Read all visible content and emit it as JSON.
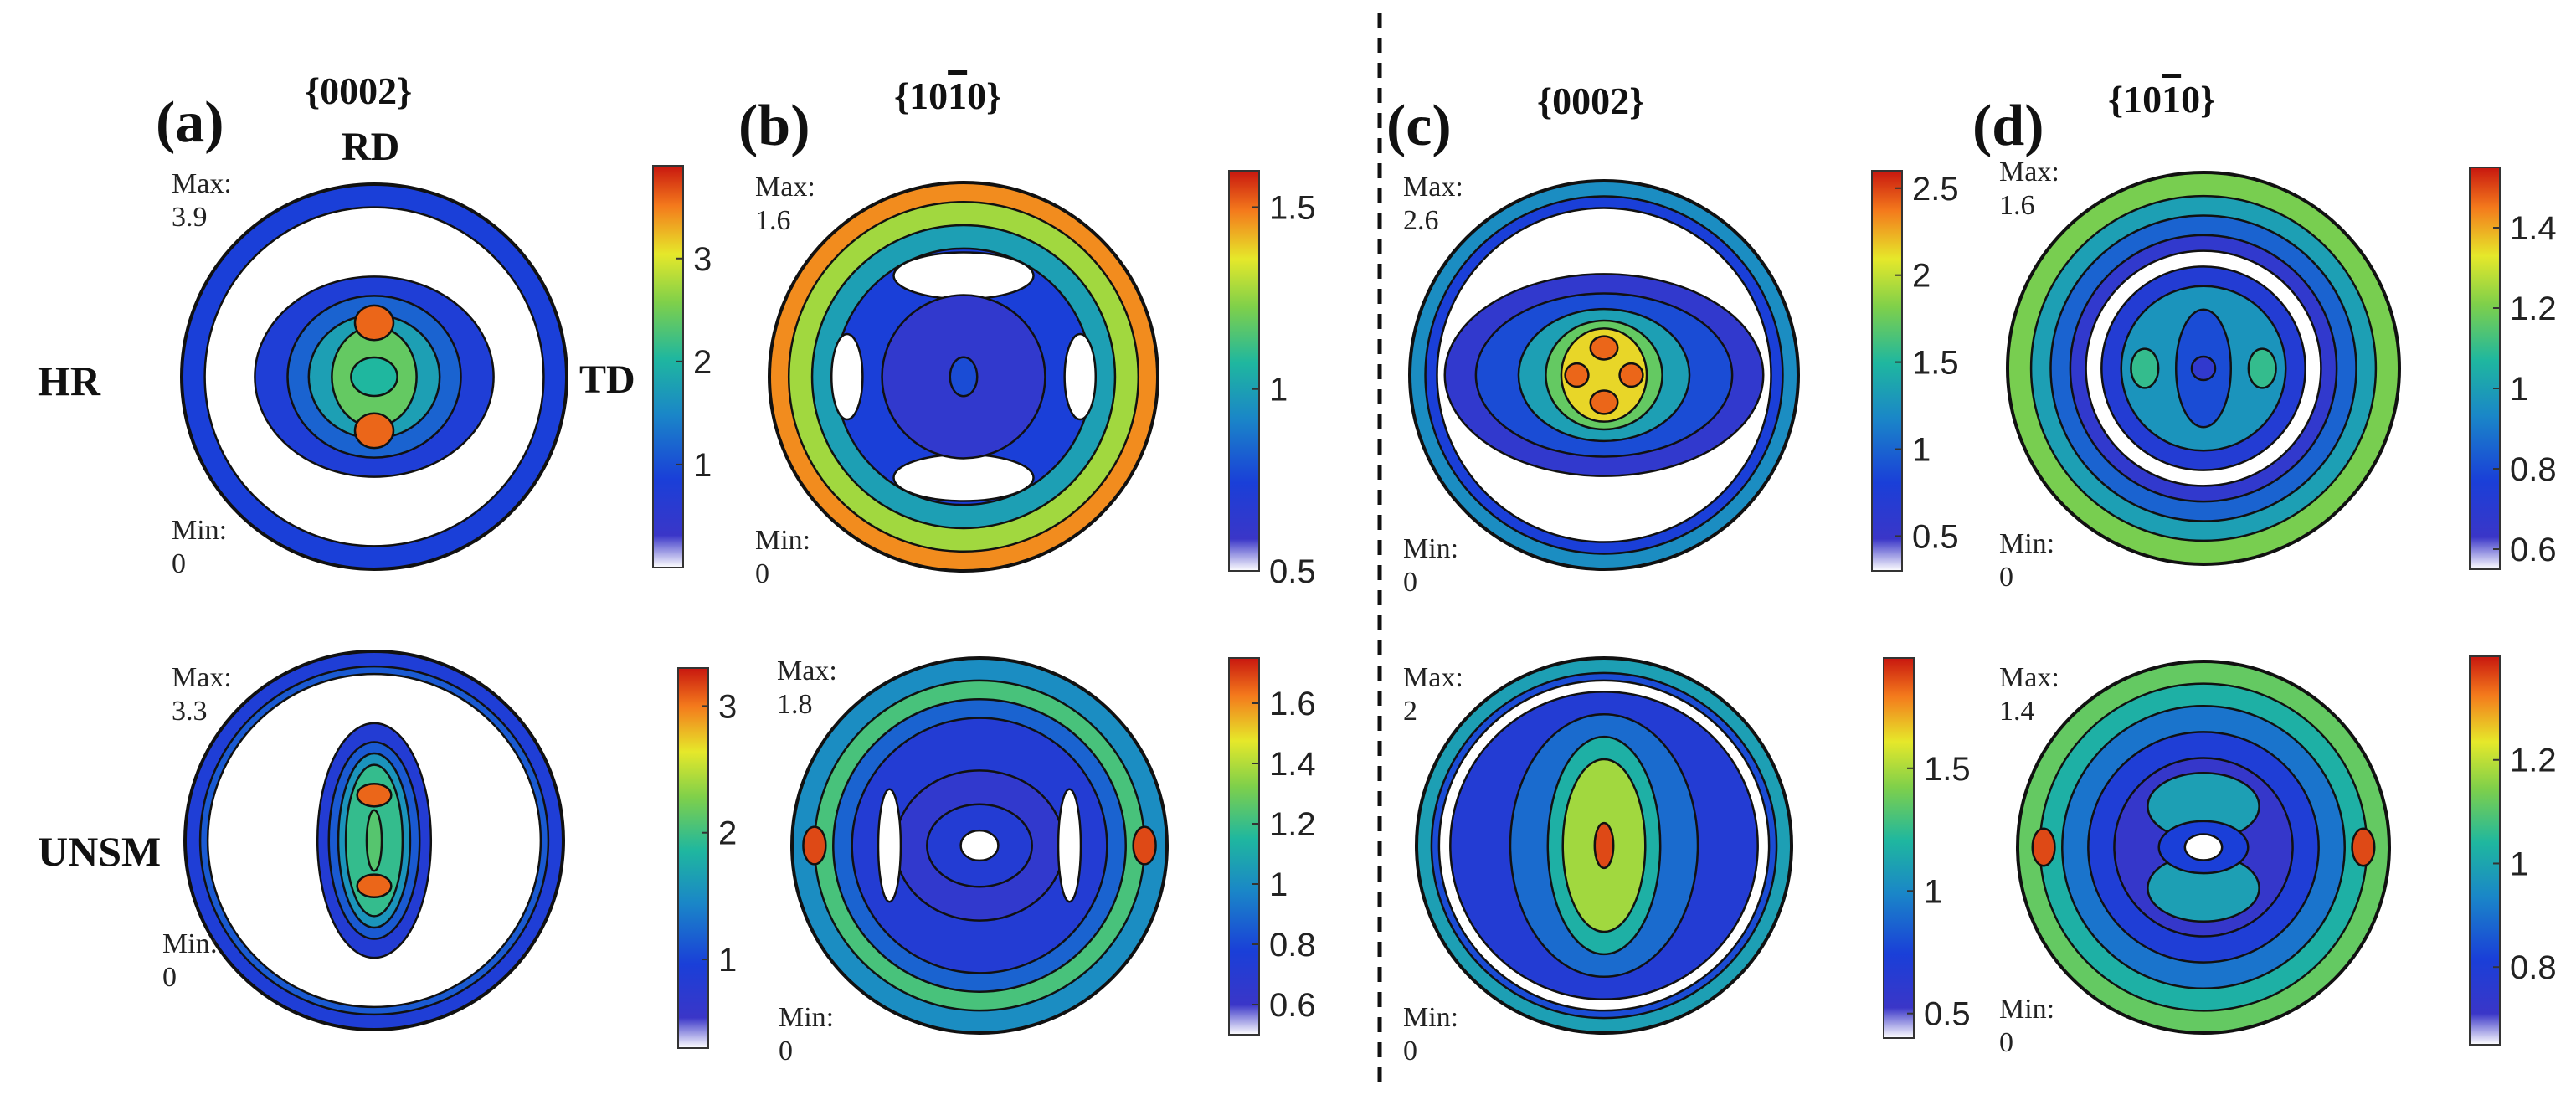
{
  "figure": {
    "row_labels": [
      "HR",
      "UNSM"
    ],
    "rd_label": "RD",
    "td_label": "TD",
    "max_prefix": "Max:",
    "min_prefix": "Min:",
    "divider": "dashed"
  },
  "panels": [
    {
      "letter": "(a)",
      "plane_pre": "{0002}",
      "plane_bar": "",
      "plane_post": ""
    },
    {
      "letter": "(b)",
      "plane_pre": "{10",
      "plane_bar": "1",
      "plane_post": "0}"
    },
    {
      "letter": "(c)",
      "plane_pre": "{0002}",
      "plane_bar": "",
      "plane_post": ""
    },
    {
      "letter": "(d)",
      "plane_pre": "{10",
      "plane_bar": "1",
      "plane_post": "0}"
    }
  ],
  "chart_data": [
    {
      "type": "heatmap",
      "subtype": "pole_figure",
      "panel": "(a)",
      "row": "HR",
      "plane": "{0002}",
      "max_text": "3.9",
      "min_text": "0",
      "max": 3.9,
      "min": 0,
      "colorbar": {
        "range": [
          0,
          3.9
        ],
        "ticks": [
          1,
          2,
          3
        ],
        "tick_labels": [
          "1",
          "2",
          "3"
        ]
      }
    },
    {
      "type": "heatmap",
      "subtype": "pole_figure",
      "panel": "(b)",
      "row": "HR",
      "plane": "{10-10}",
      "max_text": "1.6",
      "min_text": "0",
      "max": 1.6,
      "min": 0,
      "colorbar": {
        "range": [
          0.5,
          1.6
        ],
        "ticks": [
          0.5,
          1,
          1.5
        ],
        "tick_labels": [
          "0.5",
          "1",
          "1.5"
        ]
      }
    },
    {
      "type": "heatmap",
      "subtype": "pole_figure",
      "panel": "(c)",
      "row": "HR",
      "plane": "{0002}",
      "max_text": "2.6",
      "min_text": "0",
      "max": 2.6,
      "min": 0,
      "colorbar": {
        "range": [
          0.3,
          2.6
        ],
        "ticks": [
          0.5,
          1,
          1.5,
          2,
          2.5
        ],
        "tick_labels": [
          "0.5",
          "1",
          "1.5",
          "2",
          "2.5"
        ]
      }
    },
    {
      "type": "heatmap",
      "subtype": "pole_figure",
      "panel": "(d)",
      "row": "HR",
      "plane": "{10-10}",
      "max_text": "1.6",
      "min_text": "0",
      "max": 1.6,
      "min": 0,
      "colorbar": {
        "range": [
          0.55,
          1.55
        ],
        "ticks": [
          0.6,
          0.8,
          1,
          1.2,
          1.4
        ],
        "tick_labels": [
          "0.6",
          "0.8",
          "1",
          "1.2",
          "1.4"
        ]
      }
    },
    {
      "type": "heatmap",
      "subtype": "pole_figure",
      "panel": "(a)",
      "row": "UNSM",
      "plane": "{0002}",
      "max_text": "3.3",
      "min_text": "0",
      "max": 3.3,
      "min": 0,
      "colorbar": {
        "range": [
          0.3,
          3.3
        ],
        "ticks": [
          1,
          2,
          3
        ],
        "tick_labels": [
          "1",
          "2",
          "3"
        ]
      }
    },
    {
      "type": "heatmap",
      "subtype": "pole_figure",
      "panel": "(b)",
      "row": "UNSM",
      "plane": "{10-10}",
      "max_text": "1.8",
      "min_text": "0",
      "max": 1.8,
      "min": 0,
      "colorbar": {
        "range": [
          0.5,
          1.75
        ],
        "ticks": [
          0.6,
          0.8,
          1,
          1.2,
          1.4,
          1.6
        ],
        "tick_labels": [
          "0.6",
          "0.8",
          "1",
          "1.2",
          "1.4",
          "1.6"
        ]
      }
    },
    {
      "type": "heatmap",
      "subtype": "pole_figure",
      "panel": "(c)",
      "row": "UNSM",
      "plane": "{0002}",
      "max_text": "2",
      "min_text": "0",
      "max": 2,
      "min": 0,
      "colorbar": {
        "range": [
          0.4,
          1.95
        ],
        "ticks": [
          0.5,
          1,
          1.5
        ],
        "tick_labels": [
          "0.5",
          "1",
          "1.5"
        ]
      }
    },
    {
      "type": "heatmap",
      "subtype": "pole_figure",
      "panel": "(d)",
      "row": "UNSM",
      "plane": "{10-10}",
      "max_text": "1.4",
      "min_text": "0",
      "max": 1.4,
      "min": 0,
      "colorbar": {
        "range": [
          0.65,
          1.4
        ],
        "ticks": [
          0.8,
          1,
          1.2
        ],
        "tick_labels": [
          "0.8",
          "1",
          "1.2"
        ]
      }
    }
  ]
}
